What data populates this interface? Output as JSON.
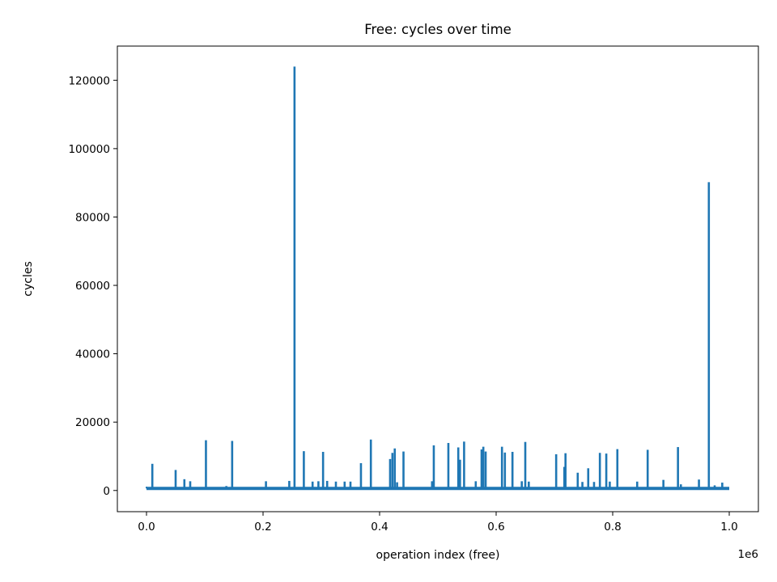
{
  "chart_data": {
    "type": "line",
    "title": "Free: cycles over time",
    "xlabel": "operation index (free)",
    "ylabel": "cycles",
    "x_offset_text": "1e6",
    "xlim": [
      -50000,
      1050000
    ],
    "ylim": [
      -6200,
      130000
    ],
    "x_ticks": [
      0,
      200000,
      400000,
      600000,
      800000,
      1000000
    ],
    "x_tick_labels": [
      "0.0",
      "0.2",
      "0.4",
      "0.6",
      "0.8",
      "1.0"
    ],
    "y_ticks": [
      0,
      20000,
      40000,
      60000,
      80000,
      100000,
      120000
    ],
    "y_tick_labels": [
      "0",
      "20000",
      "40000",
      "60000",
      "80000",
      "100000",
      "120000"
    ],
    "grid": false,
    "line_color": "#1f77b4",
    "baseline": 600,
    "x_range": [
      0,
      1000000
    ],
    "series": [
      {
        "spikes": [
          [
            10000,
            7800
          ],
          [
            50000,
            6000
          ],
          [
            65000,
            3300
          ],
          [
            75000,
            2700
          ],
          [
            102000,
            14700
          ],
          [
            137000,
            1300
          ],
          [
            147000,
            14500
          ],
          [
            205000,
            2700
          ],
          [
            245000,
            2800
          ],
          [
            254000,
            124000
          ],
          [
            270000,
            11500
          ],
          [
            285000,
            2600
          ],
          [
            295000,
            2700
          ],
          [
            303000,
            11300
          ],
          [
            310000,
            2800
          ],
          [
            325000,
            2600
          ],
          [
            340000,
            2600
          ],
          [
            350000,
            2600
          ],
          [
            368000,
            8000
          ],
          [
            385000,
            14900
          ],
          [
            418000,
            9200
          ],
          [
            422000,
            11000
          ],
          [
            426000,
            12300
          ],
          [
            430000,
            2400
          ],
          [
            441000,
            11400
          ],
          [
            490000,
            2700
          ],
          [
            493000,
            13200
          ],
          [
            518000,
            13900
          ],
          [
            535000,
            12600
          ],
          [
            538000,
            9000
          ],
          [
            545000,
            14300
          ],
          [
            565000,
            2700
          ],
          [
            575000,
            12000
          ],
          [
            578000,
            12800
          ],
          [
            582000,
            11400
          ],
          [
            610000,
            12800
          ],
          [
            615000,
            11100
          ],
          [
            628000,
            11300
          ],
          [
            644000,
            2700
          ],
          [
            650000,
            14200
          ],
          [
            656000,
            2600
          ],
          [
            703000,
            10600
          ],
          [
            717000,
            6900
          ],
          [
            719000,
            10900
          ],
          [
            740000,
            5200
          ],
          [
            748000,
            2500
          ],
          [
            758000,
            6500
          ],
          [
            768000,
            2500
          ],
          [
            778000,
            11000
          ],
          [
            789000,
            10800
          ],
          [
            795000,
            2600
          ],
          [
            808000,
            12100
          ],
          [
            842000,
            2600
          ],
          [
            860000,
            11900
          ],
          [
            887000,
            3100
          ],
          [
            912000,
            12700
          ],
          [
            917000,
            1800
          ],
          [
            948000,
            3200
          ],
          [
            965000,
            90200
          ],
          [
            975000,
            1500
          ],
          [
            988000,
            2300
          ]
        ]
      }
    ]
  }
}
